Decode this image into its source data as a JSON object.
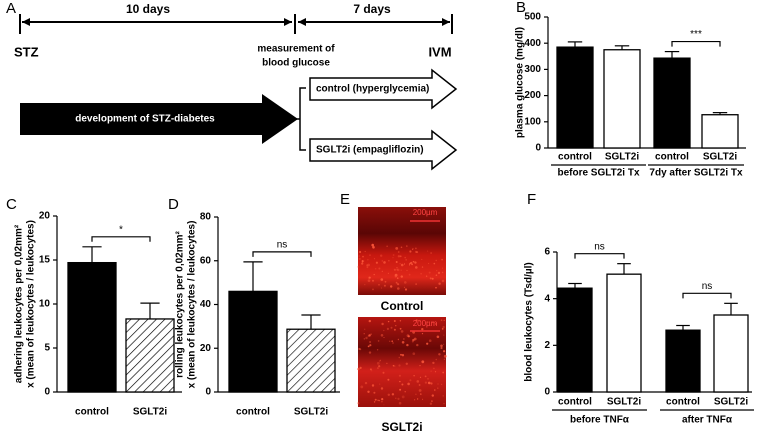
{
  "diagram": {
    "panel": "A",
    "period1": "10 days",
    "period2": "7 days",
    "start": "STZ",
    "measurement": [
      "measurement of",
      "blood glucose"
    ],
    "end": "IVM",
    "development": "development of STZ-diabetes",
    "arms": [
      "control (hyperglycemia)",
      "SGLT2i (empagliflozin)"
    ]
  },
  "images": {
    "panel": "E",
    "labels": [
      "Control",
      "SGLT2i"
    ],
    "scale": "200µm"
  },
  "chart_data": [
    {
      "type": "bar",
      "panel": "B",
      "ylabel": [
        "plasma glucose (mg/dl)"
      ],
      "categories": [
        "control",
        "SGLT2i",
        "control",
        "SGLT2i"
      ],
      "groups": [
        "before SGLT2i Tx",
        "7dy after SGLT2i Tx"
      ],
      "values": [
        385,
        375,
        343,
        127
      ],
      "errors": [
        20,
        15,
        25,
        8
      ],
      "fills": [
        "#000000",
        "#ffffff",
        "#000000",
        "#ffffff"
      ],
      "hatch": [
        false,
        false,
        false,
        false
      ],
      "annotations": [
        "***"
      ],
      "ylim": [
        0,
        500
      ],
      "yticks": [
        0,
        100,
        200,
        300,
        400,
        500
      ]
    },
    {
      "type": "bar",
      "panel": "C",
      "ylabel": [
        "adhering leukocytes per 0,02mm²",
        "x (mean of leukocytes / leukocytes)"
      ],
      "categories": [
        "control",
        "SGLT2i"
      ],
      "values": [
        14.7,
        8.3
      ],
      "errors": [
        1.8,
        1.8
      ],
      "fills": [
        "#000000",
        "#ffffff"
      ],
      "hatch": [
        false,
        true
      ],
      "annotations": [
        "*"
      ],
      "ylim": [
        0,
        20
      ],
      "yticks": [
        0,
        5,
        10,
        15,
        20
      ]
    },
    {
      "type": "bar",
      "panel": "D",
      "ylabel": [
        "rolling leukocytes per 0,02mm²",
        "x (mean of leukocytes / leukocytes)"
      ],
      "categories": [
        "control",
        "SGLT2i"
      ],
      "values": [
        46,
        28.7
      ],
      "errors": [
        13.5,
        6.5
      ],
      "fills": [
        "#000000",
        "#ffffff"
      ],
      "hatch": [
        false,
        true
      ],
      "annotations": [
        "ns"
      ],
      "ylim": [
        0,
        80
      ],
      "yticks": [
        0,
        20,
        40,
        60,
        80
      ]
    },
    {
      "type": "bar",
      "panel": "F",
      "ylabel": [
        "blood leukocytes (Tsd/µl)"
      ],
      "categories": [
        "control",
        "SGLT2i",
        "control",
        "SGLT2i"
      ],
      "groups": [
        "before TNFα",
        "after TNFα"
      ],
      "values": [
        4.45,
        5.05,
        2.65,
        3.3
      ],
      "errors": [
        0.2,
        0.45,
        0.2,
        0.5
      ],
      "fills": [
        "#000000",
        "#ffffff",
        "#000000",
        "#ffffff"
      ],
      "hatch": [
        false,
        false,
        false,
        false
      ],
      "annotations": [
        "ns",
        "ns"
      ],
      "ylim": [
        0,
        6
      ],
      "yticks": [
        0,
        2,
        4,
        6
      ]
    }
  ]
}
